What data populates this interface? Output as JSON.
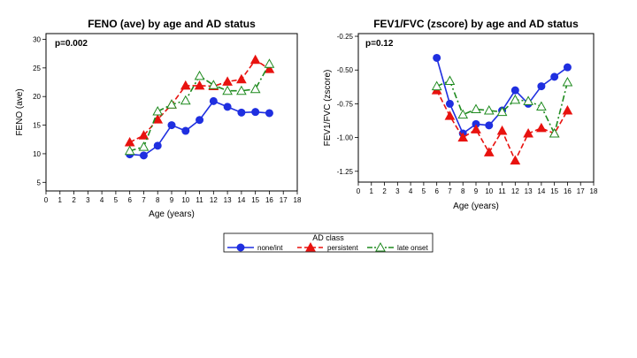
{
  "chart_data": [
    {
      "type": "line",
      "title": "FENO (ave) by age and AD status",
      "annotation": "p=0.002",
      "xlabel": "Age (years)",
      "ylabel": "FENO (ave)",
      "xlim": [
        0,
        18
      ],
      "ylim": [
        3.5,
        31
      ],
      "xticks": [
        0,
        1,
        2,
        3,
        4,
        5,
        6,
        7,
        8,
        9,
        10,
        11,
        12,
        13,
        14,
        15,
        16,
        17,
        18
      ],
      "yticks": [
        5,
        10,
        15,
        20,
        25,
        30
      ],
      "grid": false,
      "series": [
        {
          "name": "none/int",
          "x": [
            6,
            7,
            8,
            9,
            10,
            11,
            12,
            13,
            14,
            15,
            16
          ],
          "values": [
            9.9,
            9.7,
            11.4,
            15.0,
            14.0,
            15.9,
            19.2,
            18.2,
            17.2,
            17.3,
            17.1
          ]
        },
        {
          "name": "persistent",
          "x": [
            6,
            7,
            8,
            9,
            10,
            11,
            12,
            13,
            14,
            15,
            16
          ],
          "values": [
            12.0,
            13.2,
            16.0,
            18.6,
            21.9,
            21.9,
            21.8,
            22.6,
            23.0,
            26.4,
            24.8
          ]
        },
        {
          "name": "late onset",
          "x": [
            6,
            7,
            8,
            9,
            10,
            11,
            12,
            13,
            14,
            15,
            16
          ],
          "values": [
            10.5,
            11.2,
            17.4,
            18.6,
            19.3,
            23.6,
            22.0,
            21.0,
            21.0,
            21.3,
            25.7
          ]
        }
      ]
    },
    {
      "type": "line",
      "title": "FEV1/FVC (zscore) by age and AD status",
      "annotation": "p=0.12",
      "xlabel": "Age (years)",
      "ylabel": "FEV1/FVC (zscore)",
      "xlim": [
        0,
        18
      ],
      "ylim": [
        -1.33,
        -0.23
      ],
      "xticks": [
        0,
        1,
        2,
        3,
        4,
        5,
        6,
        7,
        8,
        9,
        10,
        11,
        12,
        13,
        14,
        15,
        16,
        17,
        18
      ],
      "yticks": [
        -0.25,
        -0.5,
        -0.75,
        -1.0,
        -1.25
      ],
      "ytick_labels": [
        "-0.25",
        "-0.50",
        "-0.75",
        "-1.00",
        "-1.25"
      ],
      "grid": false,
      "series": [
        {
          "name": "none/int",
          "x": [
            6,
            7,
            8,
            9,
            10,
            11,
            12,
            13,
            14,
            15,
            16
          ],
          "values": [
            -0.41,
            -0.75,
            -0.97,
            -0.9,
            -0.91,
            -0.8,
            -0.65,
            -0.75,
            -0.62,
            -0.55,
            -0.48
          ]
        },
        {
          "name": "persistent",
          "x": [
            6,
            7,
            8,
            9,
            10,
            11,
            12,
            13,
            14,
            15,
            16
          ],
          "values": [
            -0.65,
            -0.84,
            -1.0,
            -0.94,
            -1.11,
            -0.95,
            -1.17,
            -0.97,
            -0.93,
            -0.97,
            -0.8
          ]
        },
        {
          "name": "late onset",
          "x": [
            6,
            7,
            8,
            9,
            10,
            11,
            12,
            13,
            14,
            15,
            16
          ],
          "values": [
            -0.62,
            -0.58,
            -0.83,
            -0.79,
            -0.8,
            -0.81,
            -0.72,
            -0.73,
            -0.77,
            -0.97,
            -0.59
          ]
        }
      ]
    }
  ],
  "legend": {
    "title": "AD class",
    "placement": "bottom-center",
    "items": [
      {
        "label": "none/int",
        "color": "#1f2fe0",
        "marker": "circle",
        "dash": "solid"
      },
      {
        "label": "persistent",
        "color": "#e8120f",
        "marker": "triangle",
        "dash": "dashed"
      },
      {
        "label": "late onset",
        "color": "#1e8a1e",
        "marker": "triangle-open",
        "dash": "dashdot"
      }
    ]
  },
  "colors": {
    "none_int": "#1f2fe0",
    "persistent": "#e8120f",
    "late_onset": "#1e8a1e"
  }
}
